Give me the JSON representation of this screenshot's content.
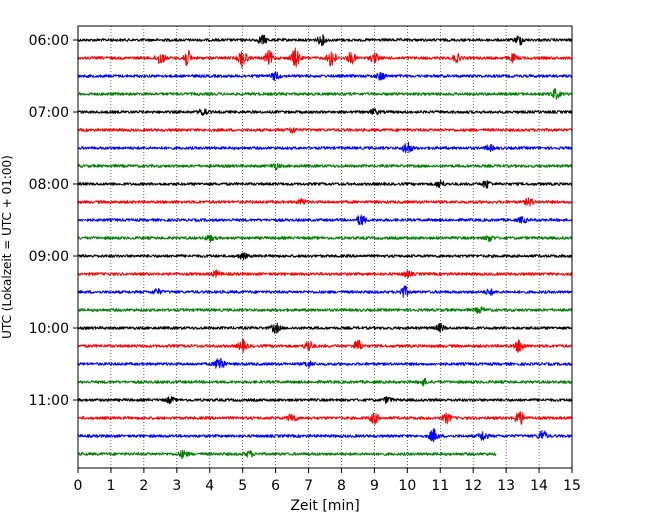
{
  "chart_data": {
    "type": "line",
    "title": "",
    "xlabel": "Zeit  [min]",
    "ylabel": "UTC (Lokalzeit = UTC + 01:00)",
    "xlim": [
      0,
      15
    ],
    "x_ticks": [
      "0",
      "1",
      "2",
      "3",
      "4",
      "5",
      "6",
      "7",
      "8",
      "9",
      "10",
      "11",
      "12",
      "13",
      "14",
      "15"
    ],
    "y_tick_labels": [
      "06:00",
      "07:00",
      "08:00",
      "09:00",
      "10:00",
      "11:00"
    ],
    "grid": "vertical-dotted",
    "colors": [
      "#000000",
      "#ff0000",
      "#0000ff",
      "#008000"
    ],
    "traces_per_hour": 4,
    "minutes_per_trace": 15,
    "traces": [
      {
        "start": "06:00",
        "end_min": 15,
        "color": "black",
        "events": [
          [
            5.6,
            0.5
          ],
          [
            7.4,
            0.5
          ],
          [
            13.4,
            0.5
          ]
        ]
      },
      {
        "start": "06:15",
        "end_min": 15,
        "color": "red",
        "events": [
          [
            2.5,
            0.7
          ],
          [
            3.3,
            0.9
          ],
          [
            5.0,
            1.0
          ],
          [
            5.8,
            0.7
          ],
          [
            6.6,
            1.0
          ],
          [
            7.7,
            1.0
          ],
          [
            8.3,
            0.6
          ],
          [
            9.0,
            0.5
          ],
          [
            11.5,
            0.4
          ],
          [
            13.2,
            0.4
          ]
        ]
      },
      {
        "start": "06:30",
        "end_min": 15,
        "color": "blue",
        "events": [
          [
            6.0,
            0.4
          ],
          [
            9.2,
            0.4
          ]
        ]
      },
      {
        "start": "06:45",
        "end_min": 15,
        "color": "green",
        "events": [
          [
            14.5,
            0.5
          ]
        ]
      },
      {
        "start": "07:00",
        "end_min": 15,
        "color": "black",
        "events": [
          [
            3.8,
            0.4
          ],
          [
            9.0,
            0.3
          ]
        ]
      },
      {
        "start": "07:15",
        "end_min": 15,
        "color": "red",
        "events": [
          [
            6.5,
            0.3
          ]
        ]
      },
      {
        "start": "07:30",
        "end_min": 15,
        "color": "blue",
        "events": [
          [
            10.0,
            0.7
          ],
          [
            12.5,
            0.3
          ]
        ]
      },
      {
        "start": "07:45",
        "end_min": 15,
        "color": "green",
        "events": [
          [
            6.0,
            0.3
          ]
        ]
      },
      {
        "start": "08:00",
        "end_min": 15,
        "color": "black",
        "events": [
          [
            11.0,
            0.4
          ],
          [
            12.4,
            0.4
          ]
        ]
      },
      {
        "start": "08:15",
        "end_min": 15,
        "color": "red",
        "events": [
          [
            6.8,
            0.3
          ],
          [
            13.7,
            0.4
          ]
        ]
      },
      {
        "start": "08:30",
        "end_min": 15,
        "color": "blue",
        "events": [
          [
            8.6,
            0.6
          ],
          [
            13.5,
            0.3
          ]
        ]
      },
      {
        "start": "08:45",
        "end_min": 15,
        "color": "green",
        "events": [
          [
            4.0,
            0.3
          ],
          [
            12.5,
            0.3
          ]
        ]
      },
      {
        "start": "09:00",
        "end_min": 15,
        "color": "black",
        "events": [
          [
            5.0,
            0.3
          ]
        ]
      },
      {
        "start": "09:15",
        "end_min": 15,
        "color": "red",
        "events": [
          [
            4.2,
            0.3
          ],
          [
            10.0,
            0.3
          ]
        ]
      },
      {
        "start": "09:30",
        "end_min": 15,
        "color": "blue",
        "events": [
          [
            2.4,
            0.3
          ],
          [
            9.9,
            0.6
          ],
          [
            12.5,
            0.3
          ]
        ]
      },
      {
        "start": "09:45",
        "end_min": 15,
        "color": "green",
        "events": [
          [
            12.2,
            0.3
          ]
        ]
      },
      {
        "start": "10:00",
        "end_min": 15,
        "color": "black",
        "events": [
          [
            6.0,
            0.5
          ],
          [
            11.0,
            0.4
          ]
        ]
      },
      {
        "start": "10:15",
        "end_min": 15,
        "color": "red",
        "events": [
          [
            5.0,
            0.6
          ],
          [
            7.0,
            0.6
          ],
          [
            8.5,
            0.6
          ],
          [
            13.4,
            0.7
          ]
        ]
      },
      {
        "start": "10:30",
        "end_min": 15,
        "color": "blue",
        "events": [
          [
            4.3,
            0.9
          ],
          [
            7.0,
            0.3
          ]
        ]
      },
      {
        "start": "10:45",
        "end_min": 15,
        "color": "green",
        "events": [
          [
            10.5,
            0.3
          ]
        ]
      },
      {
        "start": "11:00",
        "end_min": 15,
        "color": "black",
        "events": [
          [
            2.8,
            0.3
          ],
          [
            9.4,
            0.3
          ]
        ]
      },
      {
        "start": "11:15",
        "end_min": 15,
        "color": "red",
        "events": [
          [
            6.5,
            0.5
          ],
          [
            9.0,
            0.6
          ],
          [
            11.2,
            0.5
          ],
          [
            13.4,
            0.8
          ]
        ]
      },
      {
        "start": "11:30",
        "end_min": 15,
        "color": "blue",
        "events": [
          [
            10.8,
            0.7
          ],
          [
            12.3,
            0.5
          ],
          [
            14.1,
            0.6
          ]
        ]
      },
      {
        "start": "11:45",
        "end_min": 12.7,
        "color": "green",
        "events": [
          [
            3.2,
            0.4
          ],
          [
            5.2,
            0.3
          ]
        ]
      }
    ]
  }
}
